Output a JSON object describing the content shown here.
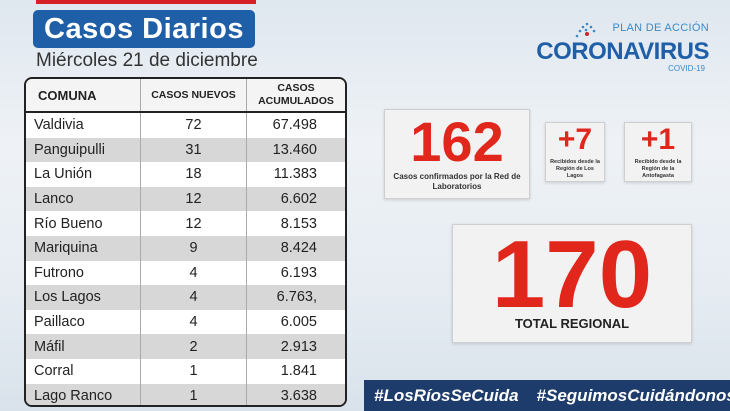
{
  "header": {
    "title": "Casos Diarios",
    "date": "Miércoles 21 de diciembre"
  },
  "logo": {
    "plan": "PLAN DE ACCIÓN",
    "name": "CORONAVIRUS",
    "sub": "COVID-19"
  },
  "table": {
    "columns": [
      "COMUNA",
      "CASOS NUEVOS",
      "CASOS ACUMULADOS"
    ],
    "rows": [
      {
        "comuna": "Valdivia",
        "nuevos": "72",
        "acumulados": "67.498"
      },
      {
        "comuna": "Panguipulli",
        "nuevos": "31",
        "acumulados": "13.460"
      },
      {
        "comuna": "La Unión",
        "nuevos": "18",
        "acumulados": "11.383"
      },
      {
        "comuna": "Lanco",
        "nuevos": "12",
        "acumulados": "6.602"
      },
      {
        "comuna": "Río Bueno",
        "nuevos": "12",
        "acumulados": "8.153"
      },
      {
        "comuna": "Mariquina",
        "nuevos": "9",
        "acumulados": "8.424"
      },
      {
        "comuna": "Futrono",
        "nuevos": "4",
        "acumulados": "6.193"
      },
      {
        "comuna": "Los Lagos",
        "nuevos": "4",
        "acumulados": "6.763,"
      },
      {
        "comuna": "Paillaco",
        "nuevos": "4",
        "acumulados": "6.005"
      },
      {
        "comuna": "Máfil",
        "nuevos": "2",
        "acumulados": "2.913"
      },
      {
        "comuna": "Corral",
        "nuevos": "1",
        "acumulados": "1.841"
      },
      {
        "comuna": "Lago Ranco",
        "nuevos": "1",
        "acumulados": "3.638"
      }
    ]
  },
  "stats": {
    "lab": {
      "value": "162",
      "label": "Casos confirmados por la Red de Laboratorios"
    },
    "los_lagos": {
      "value": "+7",
      "label": "Recibidos desde la Región de Los Lagos"
    },
    "antofagasta": {
      "value": "+1",
      "label": "Recibido desde la Región de la Antofagasta"
    },
    "total": {
      "value": "170",
      "label": "TOTAL REGIONAL"
    }
  },
  "hashtags": [
    "#LosRíosSeCuida",
    "#SeguimosCuidándonos"
  ],
  "colors": {
    "accent_red": "#e1261c",
    "brand_blue": "#1f5fa8",
    "banner_navy": "#1d3b6b"
  }
}
